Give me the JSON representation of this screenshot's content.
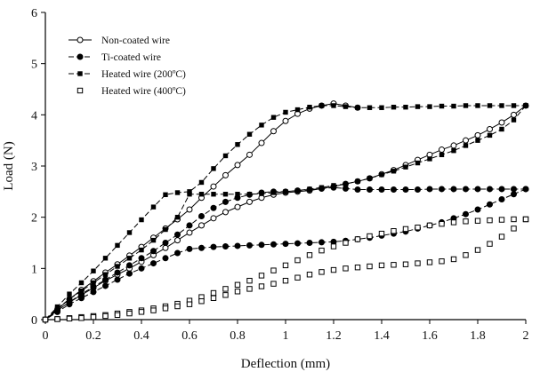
{
  "chart_data": {
    "type": "line",
    "title": "",
    "xlabel": "Deflection (mm)",
    "ylabel": "Load (N)",
    "xlim": [
      0,
      2
    ],
    "ylim": [
      0,
      6
    ],
    "xticks": [
      "0",
      "0.2",
      "0.4",
      "0.6",
      "0.8",
      "1",
      "1.2",
      "1.4",
      "1.6",
      "1.8",
      "2"
    ],
    "yticks": [
      "0",
      "1",
      "2",
      "3",
      "4",
      "5",
      "6"
    ],
    "grid": false,
    "legend_position": "top-left",
    "series": [
      {
        "name": "Non-coated wire",
        "marker": "open-circle",
        "line": "solid",
        "loading": [
          [
            0,
            0
          ],
          [
            0.05,
            0.2
          ],
          [
            0.1,
            0.4
          ],
          [
            0.15,
            0.58
          ],
          [
            0.2,
            0.75
          ],
          [
            0.25,
            0.92
          ],
          [
            0.3,
            1.08
          ],
          [
            0.35,
            1.25
          ],
          [
            0.4,
            1.42
          ],
          [
            0.45,
            1.6
          ],
          [
            0.5,
            1.78
          ],
          [
            0.55,
            1.96
          ],
          [
            0.6,
            2.15
          ],
          [
            0.65,
            2.38
          ],
          [
            0.7,
            2.6
          ],
          [
            0.75,
            2.82
          ],
          [
            0.8,
            3.02
          ],
          [
            0.85,
            3.22
          ],
          [
            0.9,
            3.45
          ],
          [
            0.95,
            3.68
          ],
          [
            1.0,
            3.88
          ],
          [
            1.05,
            4.02
          ],
          [
            1.1,
            4.12
          ],
          [
            1.15,
            4.18
          ],
          [
            1.2,
            4.22
          ],
          [
            1.25,
            4.18
          ],
          [
            1.3,
            4.14
          ]
        ],
        "unloading": [
          [
            2.0,
            4.18
          ],
          [
            1.95,
            4.0
          ],
          [
            1.9,
            3.85
          ],
          [
            1.85,
            3.72
          ],
          [
            1.8,
            3.6
          ],
          [
            1.75,
            3.5
          ],
          [
            1.7,
            3.4
          ],
          [
            1.65,
            3.32
          ],
          [
            1.6,
            3.22
          ],
          [
            1.55,
            3.12
          ],
          [
            1.5,
            3.02
          ],
          [
            1.45,
            2.92
          ],
          [
            1.4,
            2.84
          ],
          [
            1.35,
            2.76
          ],
          [
            1.3,
            2.7
          ],
          [
            1.25,
            2.65
          ],
          [
            1.2,
            2.6
          ],
          [
            1.15,
            2.56
          ],
          [
            1.1,
            2.52
          ],
          [
            1.05,
            2.5
          ],
          [
            1.0,
            2.48
          ],
          [
            0.95,
            2.44
          ],
          [
            0.9,
            2.38
          ],
          [
            0.85,
            2.3
          ],
          [
            0.8,
            2.2
          ],
          [
            0.75,
            2.1
          ],
          [
            0.7,
            1.98
          ],
          [
            0.65,
            1.84
          ],
          [
            0.6,
            1.7
          ],
          [
            0.55,
            1.55
          ],
          [
            0.5,
            1.4
          ],
          [
            0.45,
            1.26
          ],
          [
            0.4,
            1.13
          ],
          [
            0.35,
            1.0
          ],
          [
            0.3,
            0.88
          ],
          [
            0.25,
            0.76
          ],
          [
            0.2,
            0.62
          ],
          [
            0.15,
            0.48
          ],
          [
            0.1,
            0.34
          ],
          [
            0.05,
            0.18
          ],
          [
            0,
            0
          ]
        ]
      },
      {
        "name": "Ti-coated wire",
        "marker": "filled-circle",
        "line": "dashed",
        "loading": [
          [
            0,
            0
          ],
          [
            0.05,
            0.18
          ],
          [
            0.1,
            0.34
          ],
          [
            0.15,
            0.5
          ],
          [
            0.2,
            0.64
          ],
          [
            0.25,
            0.78
          ],
          [
            0.3,
            0.92
          ],
          [
            0.35,
            1.06
          ],
          [
            0.4,
            1.2
          ],
          [
            0.45,
            1.34
          ],
          [
            0.5,
            1.5
          ],
          [
            0.55,
            1.66
          ],
          [
            0.6,
            1.84
          ],
          [
            0.65,
            2.02
          ],
          [
            0.7,
            2.18
          ],
          [
            0.75,
            2.3
          ],
          [
            0.8,
            2.38
          ],
          [
            0.85,
            2.44
          ],
          [
            0.9,
            2.48
          ],
          [
            0.95,
            2.5
          ],
          [
            1.0,
            2.5
          ],
          [
            1.05,
            2.52
          ],
          [
            1.1,
            2.54
          ],
          [
            1.15,
            2.56
          ],
          [
            1.2,
            2.58
          ],
          [
            1.25,
            2.56
          ],
          [
            1.3,
            2.54
          ],
          [
            1.35,
            2.54
          ],
          [
            1.4,
            2.54
          ],
          [
            1.45,
            2.54
          ],
          [
            1.5,
            2.54
          ],
          [
            1.55,
            2.54
          ],
          [
            1.6,
            2.55
          ],
          [
            1.65,
            2.55
          ],
          [
            1.7,
            2.55
          ],
          [
            1.75,
            2.55
          ],
          [
            1.8,
            2.55
          ],
          [
            1.85,
            2.55
          ],
          [
            1.9,
            2.55
          ],
          [
            1.95,
            2.55
          ],
          [
            2.0,
            2.55
          ]
        ],
        "unloading": [
          [
            2.0,
            2.55
          ],
          [
            1.95,
            2.45
          ],
          [
            1.9,
            2.35
          ],
          [
            1.85,
            2.25
          ],
          [
            1.8,
            2.15
          ],
          [
            1.75,
            2.06
          ],
          [
            1.7,
            1.98
          ],
          [
            1.65,
            1.9
          ],
          [
            1.6,
            1.84
          ],
          [
            1.55,
            1.78
          ],
          [
            1.5,
            1.72
          ],
          [
            1.45,
            1.68
          ],
          [
            1.4,
            1.64
          ],
          [
            1.35,
            1.6
          ],
          [
            1.3,
            1.57
          ],
          [
            1.25,
            1.54
          ],
          [
            1.2,
            1.52
          ],
          [
            1.15,
            1.51
          ],
          [
            1.1,
            1.5
          ],
          [
            1.05,
            1.49
          ],
          [
            1.0,
            1.48
          ],
          [
            0.95,
            1.47
          ],
          [
            0.9,
            1.46
          ],
          [
            0.85,
            1.45
          ],
          [
            0.8,
            1.44
          ],
          [
            0.75,
            1.43
          ],
          [
            0.7,
            1.42
          ],
          [
            0.65,
            1.4
          ],
          [
            0.6,
            1.38
          ],
          [
            0.55,
            1.3
          ],
          [
            0.5,
            1.2
          ],
          [
            0.45,
            1.1
          ],
          [
            0.4,
            1.0
          ],
          [
            0.35,
            0.9
          ],
          [
            0.3,
            0.78
          ],
          [
            0.25,
            0.66
          ],
          [
            0.2,
            0.54
          ],
          [
            0.15,
            0.42
          ],
          [
            0.1,
            0.3
          ],
          [
            0.05,
            0.15
          ],
          [
            0,
            0
          ]
        ]
      },
      {
        "name": "Heated wire (200ºC)",
        "marker": "filled-square",
        "line": "dashed",
        "loading": [
          [
            0,
            0
          ],
          [
            0.05,
            0.25
          ],
          [
            0.1,
            0.5
          ],
          [
            0.15,
            0.72
          ],
          [
            0.2,
            0.95
          ],
          [
            0.25,
            1.2
          ],
          [
            0.3,
            1.45
          ],
          [
            0.35,
            1.7
          ],
          [
            0.4,
            1.95
          ],
          [
            0.45,
            2.2
          ],
          [
            0.5,
            2.44
          ],
          [
            0.55,
            2.48
          ],
          [
            0.6,
            2.5
          ],
          [
            0.65,
            2.68
          ],
          [
            0.7,
            2.95
          ],
          [
            0.75,
            3.2
          ],
          [
            0.8,
            3.42
          ],
          [
            0.85,
            3.62
          ],
          [
            0.9,
            3.8
          ],
          [
            0.95,
            3.95
          ],
          [
            1.0,
            4.05
          ],
          [
            1.05,
            4.1
          ],
          [
            1.1,
            4.15
          ],
          [
            1.15,
            4.18
          ],
          [
            1.2,
            4.18
          ],
          [
            1.25,
            4.16
          ],
          [
            1.3,
            4.14
          ],
          [
            1.35,
            4.14
          ],
          [
            1.4,
            4.14
          ],
          [
            1.45,
            4.15
          ],
          [
            1.5,
            4.15
          ],
          [
            1.55,
            4.16
          ],
          [
            1.6,
            4.16
          ],
          [
            1.65,
            4.17
          ],
          [
            1.7,
            4.17
          ],
          [
            1.75,
            4.18
          ],
          [
            1.8,
            4.18
          ],
          [
            1.85,
            4.18
          ],
          [
            1.9,
            4.18
          ],
          [
            1.95,
            4.18
          ],
          [
            2.0,
            4.18
          ]
        ],
        "unloading": [
          [
            2.0,
            4.18
          ],
          [
            1.95,
            3.9
          ],
          [
            1.9,
            3.72
          ],
          [
            1.85,
            3.6
          ],
          [
            1.8,
            3.5
          ],
          [
            1.75,
            3.4
          ],
          [
            1.7,
            3.3
          ],
          [
            1.65,
            3.22
          ],
          [
            1.6,
            3.14
          ],
          [
            1.55,
            3.06
          ],
          [
            1.5,
            2.98
          ],
          [
            1.45,
            2.9
          ],
          [
            1.4,
            2.83
          ],
          [
            1.35,
            2.76
          ],
          [
            1.3,
            2.7
          ],
          [
            1.25,
            2.65
          ],
          [
            1.2,
            2.62
          ],
          [
            1.15,
            2.58
          ],
          [
            1.1,
            2.55
          ],
          [
            1.05,
            2.52
          ],
          [
            1.0,
            2.5
          ],
          [
            0.95,
            2.48
          ],
          [
            0.9,
            2.46
          ],
          [
            0.85,
            2.45
          ],
          [
            0.8,
            2.45
          ],
          [
            0.75,
            2.45
          ],
          [
            0.7,
            2.45
          ],
          [
            0.65,
            2.45
          ],
          [
            0.6,
            2.45
          ],
          [
            0.55,
            2.0
          ],
          [
            0.5,
            1.76
          ],
          [
            0.45,
            1.55
          ],
          [
            0.4,
            1.36
          ],
          [
            0.35,
            1.2
          ],
          [
            0.3,
            1.04
          ],
          [
            0.25,
            0.88
          ],
          [
            0.2,
            0.72
          ],
          [
            0.15,
            0.56
          ],
          [
            0.1,
            0.4
          ],
          [
            0.05,
            0.22
          ],
          [
            0,
            0
          ]
        ]
      },
      {
        "name": "Heated wire (400ºC)",
        "marker": "open-square",
        "line": "none",
        "loading": [
          [
            0,
            0
          ],
          [
            0.05,
            0.01
          ],
          [
            0.1,
            0.03
          ],
          [
            0.15,
            0.05
          ],
          [
            0.2,
            0.07
          ],
          [
            0.25,
            0.09
          ],
          [
            0.3,
            0.12
          ],
          [
            0.35,
            0.15
          ],
          [
            0.4,
            0.18
          ],
          [
            0.45,
            0.22
          ],
          [
            0.5,
            0.26
          ],
          [
            0.55,
            0.31
          ],
          [
            0.6,
            0.37
          ],
          [
            0.65,
            0.44
          ],
          [
            0.7,
            0.52
          ],
          [
            0.75,
            0.6
          ],
          [
            0.8,
            0.68
          ],
          [
            0.85,
            0.76
          ],
          [
            0.9,
            0.86
          ],
          [
            0.95,
            0.96
          ],
          [
            1.0,
            1.06
          ],
          [
            1.05,
            1.16
          ],
          [
            1.1,
            1.26
          ],
          [
            1.15,
            1.35
          ],
          [
            1.2,
            1.43
          ],
          [
            1.25,
            1.5
          ],
          [
            1.3,
            1.57
          ],
          [
            1.35,
            1.63
          ],
          [
            1.4,
            1.68
          ],
          [
            1.45,
            1.73
          ],
          [
            1.5,
            1.77
          ],
          [
            1.55,
            1.8
          ],
          [
            1.6,
            1.84
          ],
          [
            1.65,
            1.87
          ],
          [
            1.7,
            1.9
          ],
          [
            1.75,
            1.92
          ],
          [
            1.8,
            1.93
          ],
          [
            1.85,
            1.94
          ],
          [
            1.9,
            1.95
          ],
          [
            1.95,
            1.96
          ],
          [
            2.0,
            1.96
          ]
        ],
        "unloading": [
          [
            2.0,
            1.96
          ],
          [
            1.95,
            1.78
          ],
          [
            1.9,
            1.62
          ],
          [
            1.85,
            1.48
          ],
          [
            1.8,
            1.36
          ],
          [
            1.75,
            1.26
          ],
          [
            1.7,
            1.18
          ],
          [
            1.65,
            1.14
          ],
          [
            1.6,
            1.12
          ],
          [
            1.55,
            1.1
          ],
          [
            1.5,
            1.08
          ],
          [
            1.45,
            1.07
          ],
          [
            1.4,
            1.06
          ],
          [
            1.35,
            1.04
          ],
          [
            1.3,
            1.02
          ],
          [
            1.25,
            1.0
          ],
          [
            1.2,
            0.97
          ],
          [
            1.15,
            0.93
          ],
          [
            1.1,
            0.88
          ],
          [
            1.05,
            0.82
          ],
          [
            1.0,
            0.76
          ],
          [
            0.95,
            0.7
          ],
          [
            0.9,
            0.65
          ],
          [
            0.85,
            0.6
          ],
          [
            0.8,
            0.55
          ],
          [
            0.75,
            0.48
          ],
          [
            0.7,
            0.42
          ],
          [
            0.65,
            0.36
          ],
          [
            0.6,
            0.3
          ],
          [
            0.55,
            0.26
          ],
          [
            0.5,
            0.22
          ],
          [
            0.45,
            0.18
          ],
          [
            0.4,
            0.15
          ],
          [
            0.35,
            0.12
          ],
          [
            0.3,
            0.09
          ],
          [
            0.25,
            0.07
          ],
          [
            0.2,
            0.05
          ],
          [
            0.15,
            0.03
          ],
          [
            0.1,
            0.02
          ],
          [
            0.05,
            0.01
          ],
          [
            0,
            0
          ]
        ]
      }
    ]
  }
}
